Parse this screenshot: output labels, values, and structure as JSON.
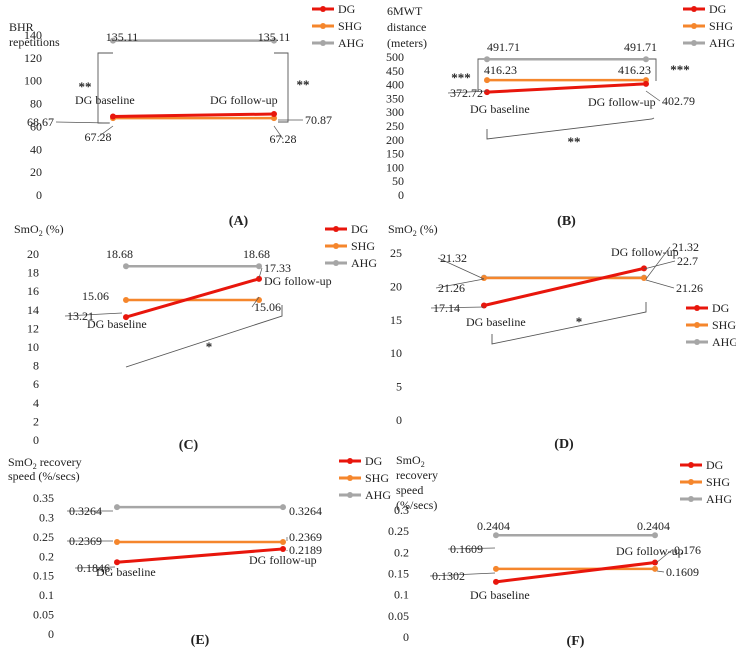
{
  "colors": {
    "DG": "#e8160c",
    "SHG": "#f5862c",
    "AHG": "#a6a6a6",
    "star": "#e8160c",
    "text": "#222222",
    "bracket": "#555555"
  },
  "chart_data": [
    {
      "type": "line",
      "panel": "(A)",
      "ylabel": [
        "BHR",
        "repetitions"
      ],
      "yticks": [
        0,
        20,
        40,
        60,
        80,
        100,
        120,
        140
      ],
      "ylim": [
        0,
        140
      ],
      "series": [
        {
          "name": "DG",
          "values": [
            68.67,
            70.87
          ],
          "labels": [
            "68.67",
            "70.87"
          ]
        },
        {
          "name": "SHG",
          "values": [
            67.28,
            67.28
          ],
          "labels": [
            "67.28",
            "67.28"
          ]
        },
        {
          "name": "AHG",
          "values": [
            135.11,
            135.11
          ],
          "labels": [
            "135.11",
            "135.11"
          ]
        }
      ],
      "point_labels": [
        "DG baseline",
        "DG follow-up"
      ],
      "legend": "top-right",
      "annotations": [
        {
          "text": "**",
          "side": "left"
        },
        {
          "text": "**",
          "side": "right"
        }
      ]
    },
    {
      "type": "line",
      "panel": "(B)",
      "ylabel": [
        "6MWT",
        "distance",
        "(meters)"
      ],
      "yticks": [
        0,
        50,
        100,
        150,
        200,
        250,
        300,
        350,
        400,
        450,
        500
      ],
      "ylim": [
        0,
        500
      ],
      "series": [
        {
          "name": "DG",
          "values": [
            372.72,
            402.79
          ],
          "labels": [
            "372.72",
            "402.79"
          ]
        },
        {
          "name": "SHG",
          "values": [
            416.23,
            416.23
          ],
          "labels": [
            "416.23",
            "416.23"
          ]
        },
        {
          "name": "AHG",
          "values": [
            491.71,
            491.71
          ],
          "labels": [
            "491.71",
            "491.71"
          ]
        }
      ],
      "point_labels": [
        "DG baseline",
        "DG follow-up"
      ],
      "legend": "top-right",
      "annotations": [
        {
          "text": "***",
          "side": "left"
        },
        {
          "text": "***",
          "side": "right"
        },
        {
          "text": "**",
          "side": "bottom"
        }
      ]
    },
    {
      "type": "line",
      "panel": "(C)",
      "ylabel": [
        "SmO₂ (%)"
      ],
      "yticks": [
        0,
        2,
        4,
        6,
        8,
        10,
        12,
        14,
        16,
        18,
        20
      ],
      "ylim": [
        0,
        20
      ],
      "series": [
        {
          "name": "DG",
          "values": [
            13.21,
            17.33
          ],
          "labels": [
            "13.21",
            "17.33"
          ]
        },
        {
          "name": "SHG",
          "values": [
            15.06,
            15.06
          ],
          "labels": [
            "15.06",
            "15.06"
          ]
        },
        {
          "name": "AHG",
          "values": [
            18.68,
            18.68
          ],
          "labels": [
            "18.68",
            "18.68"
          ]
        }
      ],
      "point_labels": [
        "DG baseline",
        "DG follow-up"
      ],
      "legend": "top-right",
      "annotations": [
        {
          "text": "*",
          "side": "bottom"
        }
      ]
    },
    {
      "type": "line",
      "panel": "(D)",
      "ylabel": [
        "SmO₂ (%)"
      ],
      "yticks": [
        0,
        5,
        10,
        15,
        20,
        25
      ],
      "ylim": [
        0,
        25
      ],
      "series": [
        {
          "name": "DG",
          "values": [
            17.14,
            22.7
          ],
          "labels": [
            "17.14",
            "22.7"
          ]
        },
        {
          "name": "SHG",
          "values": [
            21.26,
            21.26
          ],
          "labels": [
            "21.26",
            "21.26"
          ]
        },
        {
          "name": "AHG",
          "values": [
            21.32,
            21.32
          ],
          "labels": [
            "21.32",
            "21.32"
          ]
        }
      ],
      "point_labels": [
        "DG baseline",
        "DG follow-up"
      ],
      "legend": "right",
      "annotations": [
        {
          "text": "*",
          "side": "bottom"
        }
      ]
    },
    {
      "type": "line",
      "panel": "(E)",
      "ylabel": [
        "SmO₂ recovery",
        "speed (%/secs)"
      ],
      "yticks": [
        0,
        0.05,
        0.1,
        0.15,
        0.2,
        0.25,
        0.3,
        0.35
      ],
      "ylim": [
        0,
        0.35
      ],
      "series": [
        {
          "name": "DG",
          "values": [
            0.1846,
            0.2189
          ],
          "labels": [
            "0.1846",
            "0.2189"
          ]
        },
        {
          "name": "SHG",
          "values": [
            0.2369,
            0.2369
          ],
          "labels": [
            "0.2369",
            "0.2369"
          ]
        },
        {
          "name": "AHG",
          "values": [
            0.3264,
            0.3264
          ],
          "labels": [
            "0.3264",
            "0.3264"
          ]
        }
      ],
      "point_labels": [
        "DG baseline",
        "DG follow-up"
      ],
      "legend": "top-right",
      "annotations": []
    },
    {
      "type": "line",
      "panel": "(F)",
      "ylabel": [
        "SmO₂",
        "recovery",
        "speed",
        "(%/secs)"
      ],
      "yticks": [
        0,
        0.05,
        0.1,
        0.15,
        0.2,
        0.25,
        0.3
      ],
      "ylim": [
        0,
        0.3
      ],
      "series": [
        {
          "name": "DG",
          "values": [
            0.1302,
            0.176
          ],
          "labels": [
            "0.1302",
            "0.176"
          ]
        },
        {
          "name": "SHG",
          "values": [
            0.1609,
            0.1609
          ],
          "labels": [
            "0.1609",
            "0.1609"
          ]
        },
        {
          "name": "AHG",
          "values": [
            0.2404,
            0.2404
          ],
          "labels": [
            "0.2404",
            "0.2404"
          ]
        }
      ],
      "point_labels": [
        "DG baseline",
        "DG follow-up"
      ],
      "legend": "top-right",
      "annotations": []
    }
  ]
}
